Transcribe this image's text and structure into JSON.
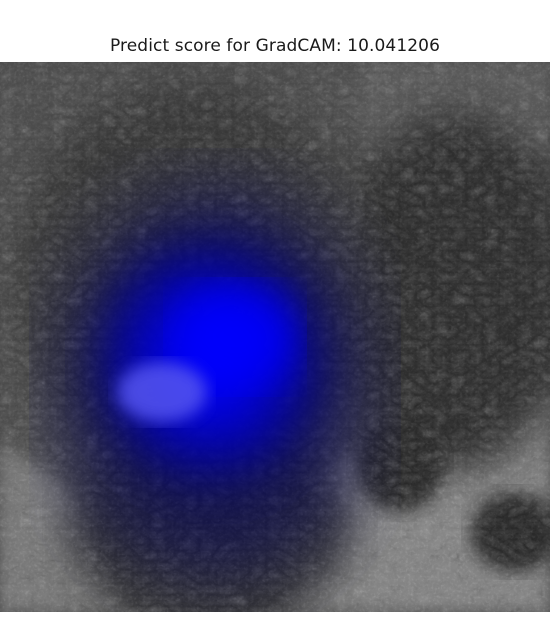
{
  "title": "Predict score for GradCAM: 10.041206",
  "figure": {
    "description_kind": "grayscale-photo-with-blue-heatmap-overlay",
    "heatmap_color": "#0000ff",
    "background_tone": "#5a5a5a"
  }
}
